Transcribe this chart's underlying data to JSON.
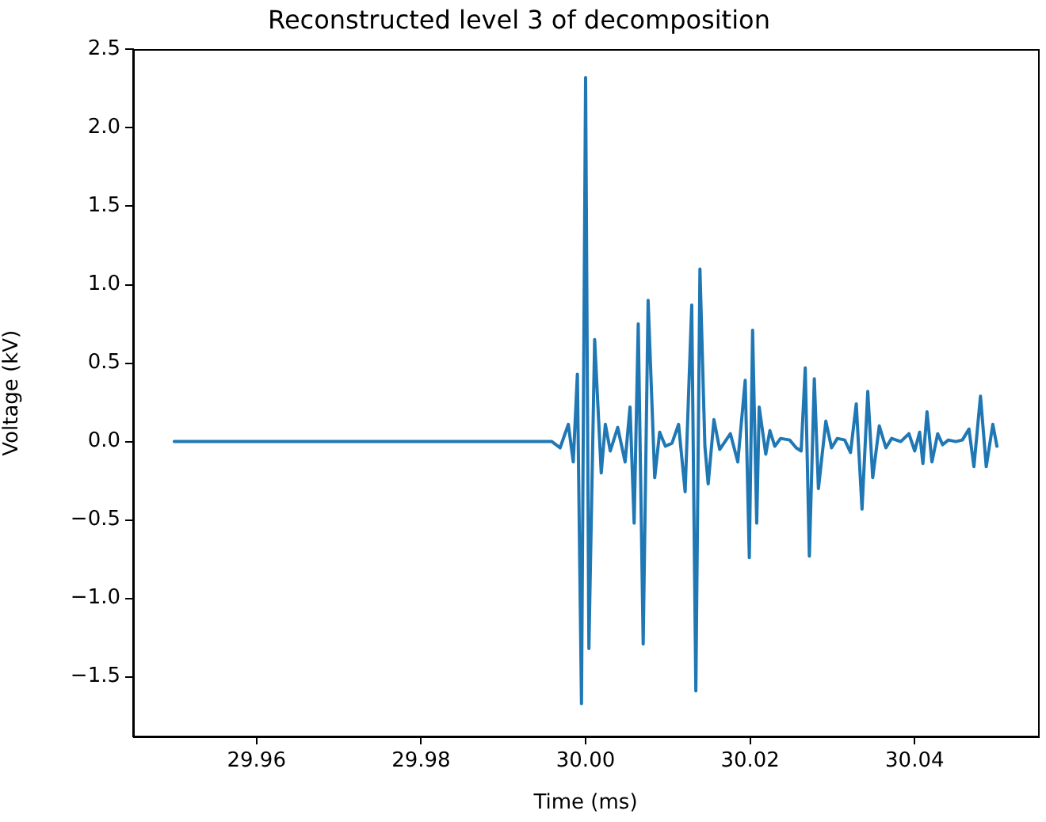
{
  "chart_data": {
    "type": "line",
    "title": "Reconstructed level 3 of decomposition",
    "xlabel": "Time (ms)",
    "ylabel": "Voltage (kV)",
    "xlim": [
      29.945,
      30.055
    ],
    "ylim": [
      -1.88,
      2.5
    ],
    "xticks": [
      29.96,
      29.98,
      {
        "value": 30,
        "label": "30.00"
      },
      30.02,
      30.04
    ],
    "yticks": [
      {
        "value": -1.5,
        "label": "−1.5"
      },
      {
        "value": -1,
        "label": "−1.0"
      },
      {
        "value": -0.5,
        "label": "−0.5"
      },
      {
        "value": 0,
        "label": "0.0"
      },
      0.5,
      {
        "value": 1,
        "label": "1.0"
      },
      1.5,
      {
        "value": 2,
        "label": "2.0"
      },
      2.5
    ],
    "grid": false,
    "legend": false,
    "marker": "none",
    "line_style": "solid",
    "series": [
      {
        "color": "#1f77b4",
        "x": [
          29.95,
          29.9959,
          29.9969,
          29.9979,
          29.9985,
          29.999,
          29.9995,
          30.0,
          30.0004,
          30.0011,
          30.0019,
          30.0024,
          30.003,
          30.0039,
          30.0048,
          30.0054,
          30.0059,
          30.0064,
          30.007,
          30.0076,
          30.0084,
          30.009,
          30.0097,
          30.0105,
          30.0113,
          30.0121,
          30.0129,
          30.0134,
          30.0139,
          30.0145,
          30.0149,
          30.0156,
          30.0163,
          30.0176,
          30.0185,
          30.0194,
          30.0199,
          30.0203,
          30.0208,
          30.0211,
          30.0219,
          30.0224,
          30.023,
          30.0237,
          30.0248,
          30.0256,
          30.0262,
          30.0267,
          30.0272,
          30.0278,
          30.0283,
          30.0292,
          30.0299,
          30.0306,
          30.0315,
          30.0322,
          30.0329,
          30.0336,
          30.0343,
          30.0349,
          30.0357,
          30.0365,
          30.0372,
          30.0383,
          30.0393,
          30.04,
          30.0406,
          30.041,
          30.0415,
          30.0421,
          30.0428,
          30.0434,
          30.0441,
          30.045,
          30.0458,
          30.0466,
          30.0472,
          30.048,
          30.0487,
          30.0495,
          30.05
        ],
        "values": [
          0,
          0,
          -0.04,
          0.11,
          -0.13,
          0.43,
          -1.67,
          2.32,
          -1.32,
          0.65,
          -0.2,
          0.11,
          -0.06,
          0.09,
          -0.13,
          0.22,
          -0.52,
          0.75,
          -1.29,
          0.9,
          -0.23,
          0.06,
          -0.03,
          -0.01,
          0.11,
          -0.32,
          0.87,
          -1.59,
          1.1,
          -0.03,
          -0.27,
          0.14,
          -0.05,
          0.05,
          -0.13,
          0.39,
          -0.74,
          0.71,
          -0.52,
          0.22,
          -0.08,
          0.07,
          -0.03,
          0.02,
          0.01,
          -0.04,
          -0.06,
          0.47,
          -0.73,
          0.4,
          -0.3,
          0.13,
          -0.04,
          0.02,
          0.01,
          -0.07,
          0.24,
          -0.43,
          0.32,
          -0.23,
          0.1,
          -0.04,
          0.02,
          0,
          0.05,
          -0.06,
          0.06,
          -0.14,
          0.19,
          -0.13,
          0.05,
          -0.02,
          0.01,
          0,
          0.01,
          0.08,
          -0.16,
          0.29,
          -0.16,
          0.11,
          -0.03
        ]
      }
    ]
  }
}
